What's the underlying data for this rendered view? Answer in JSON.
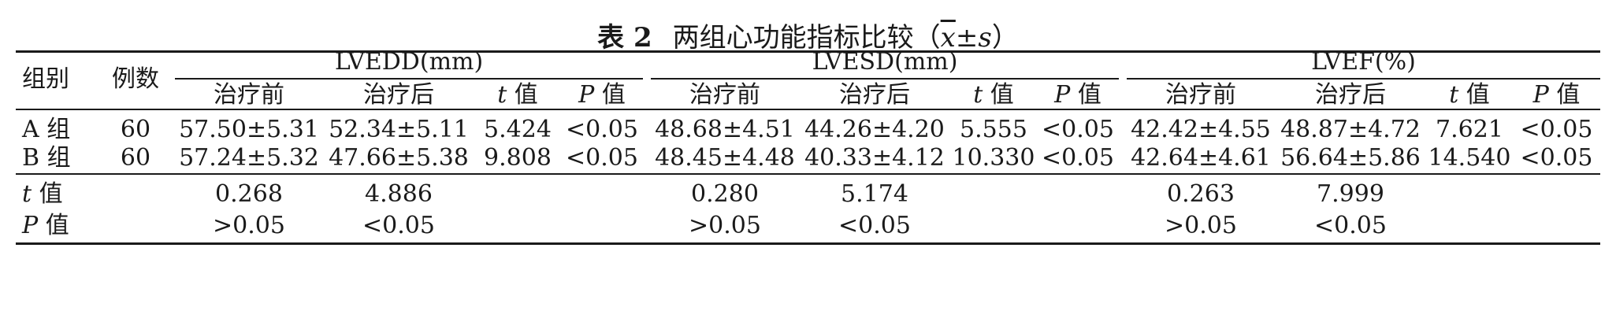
{
  "caption": {
    "label": "表 2",
    "title": "两组心功能指标比较",
    "stat_open": "（",
    "stat_mean": "x",
    "stat_pm": "±",
    "stat_sd": "s",
    "stat_close": "）"
  },
  "header": {
    "group": "组别",
    "cases": "例数",
    "lvedd": "LVEDD(mm)",
    "lvesd": "LVESD(mm)",
    "lvef": "LVEF(%)",
    "before": "治疗前",
    "after": "治疗后",
    "t_sym": "t",
    "p_sym": "P",
    "val": "值"
  },
  "rows": [
    {
      "group": "A 组",
      "n": "60",
      "lvedd": [
        "57.50±5.31",
        "52.34±5.11",
        "5.424",
        "<0.05"
      ],
      "lvesd": [
        "48.68±4.51",
        "44.26±4.20",
        "5.555",
        "<0.05"
      ],
      "lvef": [
        "42.42±4.55",
        "48.87±4.72",
        "7.621",
        "<0.05"
      ]
    },
    {
      "group": "B 组",
      "n": "60",
      "lvedd": [
        "57.24±5.32",
        "47.66±5.38",
        "9.808",
        "<0.05"
      ],
      "lvesd": [
        "48.45±4.48",
        "40.33±4.12",
        "10.330",
        "<0.05"
      ],
      "lvef": [
        "42.64±4.61",
        "56.64±5.86",
        "14.540",
        "<0.05"
      ]
    }
  ],
  "t_row": {
    "label_sym": "t",
    "label_word": "值",
    "lvedd": [
      "0.268",
      "4.886"
    ],
    "lvesd": [
      "0.280",
      "5.174"
    ],
    "lvef": [
      "0.263",
      "7.999"
    ]
  },
  "p_row": {
    "label_sym": "P",
    "label_word": "值",
    "lvedd": [
      ">0.05",
      "<0.05"
    ],
    "lvesd": [
      ">0.05",
      "<0.05"
    ],
    "lvef": [
      ">0.05",
      "<0.05"
    ]
  }
}
